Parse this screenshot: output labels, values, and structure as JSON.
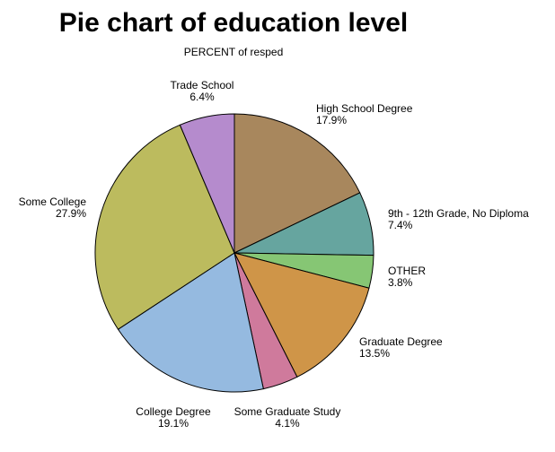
{
  "chart_data": {
    "type": "pie",
    "title": "Pie chart of education level",
    "subtitle": "PERCENT of resped",
    "categories": [
      "High School Degree",
      "9th - 12th Grade, No Diploma",
      "OTHER",
      "Graduate Degree",
      "Some Graduate Study",
      "College Degree",
      "Some College",
      "Trade School"
    ],
    "values": [
      17.9,
      7.4,
      3.8,
      13.5,
      4.1,
      19.1,
      27.9,
      6.4
    ],
    "value_labels": [
      "17.9%",
      "7.4%",
      "3.8%",
      "13.5%",
      "4.1%",
      "19.1%",
      "27.9%",
      "6.4%"
    ],
    "colors": [
      "#a8875d",
      "#66a59f",
      "#86c674",
      "#cf9548",
      "#cf7a9c",
      "#95bae0",
      "#bcbb5e",
      "#b58bcd"
    ]
  }
}
